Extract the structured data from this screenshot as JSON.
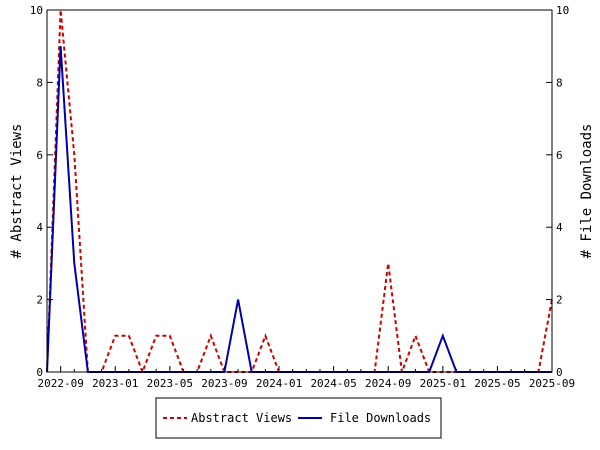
{
  "chart_data": {
    "type": "line",
    "x": [
      "2022-08",
      "2022-09",
      "2022-10",
      "2022-11",
      "2022-12",
      "2023-01",
      "2023-02",
      "2023-03",
      "2023-04",
      "2023-05",
      "2023-06",
      "2023-07",
      "2023-08",
      "2023-09",
      "2023-10",
      "2023-11",
      "2023-12",
      "2024-01",
      "2024-02",
      "2024-03",
      "2024-04",
      "2024-05",
      "2024-06",
      "2024-07",
      "2024-08",
      "2024-09",
      "2024-10",
      "2024-11",
      "2024-12",
      "2025-01",
      "2025-02",
      "2025-03",
      "2025-04",
      "2025-05",
      "2025-06",
      "2025-07",
      "2025-08",
      "2025-09"
    ],
    "series": [
      {
        "name": "Abstract Views",
        "axis": "left",
        "color": "#cc0000",
        "dash": true,
        "values": [
          0,
          10,
          6,
          0,
          0,
          1,
          1,
          0,
          1,
          1,
          0,
          0,
          1,
          0,
          0,
          0,
          1,
          0,
          0,
          0,
          0,
          0,
          0,
          0,
          0,
          3,
          0,
          1,
          0,
          0,
          0,
          0,
          0,
          0,
          0,
          0,
          0,
          2
        ]
      },
      {
        "name": "File Downloads",
        "axis": "right",
        "color": "#0000aa",
        "dash": false,
        "values": [
          0,
          9,
          3,
          0,
          0,
          0,
          0,
          0,
          0,
          0,
          0,
          0,
          0,
          0,
          2,
          0,
          0,
          0,
          0,
          0,
          0,
          0,
          0,
          0,
          0,
          0,
          0,
          0,
          0,
          1,
          0,
          0,
          0,
          0,
          0,
          0,
          0,
          0
        ]
      }
    ],
    "xticks": [
      "2022-09",
      "2023-01",
      "2023-05",
      "2023-09",
      "2024-01",
      "2024-05",
      "2024-09",
      "2025-01",
      "2025-05",
      "2025-09"
    ],
    "yticks_left": [
      0,
      2,
      4,
      6,
      8,
      10
    ],
    "yticks_right": [
      0,
      2,
      4,
      6,
      8,
      10
    ],
    "ylabel_left": "# Abstract Views",
    "ylabel_right": "# File Downloads",
    "ylim_left": [
      0,
      10
    ],
    "ylim_right": [
      0,
      10
    ],
    "grid": false,
    "legend_position": "bottom"
  }
}
